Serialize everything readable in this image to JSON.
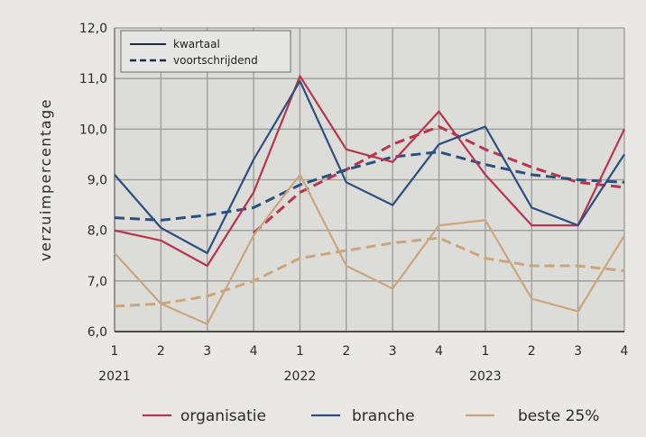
{
  "chart_data": {
    "type": "line",
    "ylabel": "verzuimpercentage",
    "xlabel": "",
    "ylim": [
      6.0,
      12.0
    ],
    "yticks": [
      "6,0",
      "7,0",
      "8,0",
      "9,0",
      "10,0",
      "11,0",
      "12,0"
    ],
    "x_tick_labels": [
      "1",
      "2",
      "3",
      "4",
      "1",
      "2",
      "3",
      "4",
      "1",
      "2",
      "3",
      "4"
    ],
    "year_labels": [
      {
        "label": "2021",
        "index": 0
      },
      {
        "label": "2022",
        "index": 4
      },
      {
        "label": "2023",
        "index": 8
      }
    ],
    "grid": true,
    "style_legend": {
      "placement": "top-left",
      "entries": [
        {
          "label": "kwartaal",
          "style": "solid"
        },
        {
          "label": "voortschrijdend",
          "style": "dashed"
        }
      ]
    },
    "color_legend": {
      "placement": "bottom",
      "entries": [
        {
          "label": "organisatie",
          "color": "#b8344f"
        },
        {
          "label": "branche",
          "color": "#2b4f7e"
        },
        {
          "label": "beste 25%",
          "color": "#cba57c"
        }
      ]
    },
    "series": [
      {
        "name": "organisatie",
        "style": "solid",
        "color": "#b8344f",
        "values": [
          8.0,
          7.8,
          7.3,
          8.75,
          11.05,
          9.6,
          9.35,
          10.35,
          9.1,
          8.1,
          8.1,
          10.0
        ]
      },
      {
        "name": "organisatie",
        "style": "dashed",
        "color": "#b8344f",
        "values": [
          null,
          null,
          null,
          7.95,
          8.75,
          9.2,
          9.7,
          10.05,
          9.6,
          9.25,
          8.95,
          8.85
        ]
      },
      {
        "name": "branche",
        "style": "solid",
        "color": "#2b4f7e",
        "values": [
          9.1,
          8.05,
          7.55,
          9.4,
          10.95,
          8.95,
          8.5,
          9.7,
          10.05,
          8.45,
          8.1,
          9.5
        ]
      },
      {
        "name": "branche",
        "style": "dashed",
        "color": "#2b4f7e",
        "values": [
          8.25,
          8.2,
          8.3,
          8.45,
          8.9,
          9.2,
          9.45,
          9.55,
          9.3,
          9.1,
          9.0,
          8.95
        ]
      },
      {
        "name": "beste 25%",
        "style": "solid",
        "color": "#cba57c",
        "values": [
          7.55,
          6.55,
          6.15,
          7.9,
          9.1,
          7.3,
          6.85,
          8.1,
          8.2,
          6.65,
          6.4,
          7.9
        ]
      },
      {
        "name": "beste 25%",
        "style": "dashed",
        "color": "#cba57c",
        "values": [
          6.5,
          6.55,
          6.7,
          7.0,
          7.45,
          7.6,
          7.75,
          7.85,
          7.45,
          7.3,
          7.3,
          7.2
        ]
      }
    ]
  }
}
